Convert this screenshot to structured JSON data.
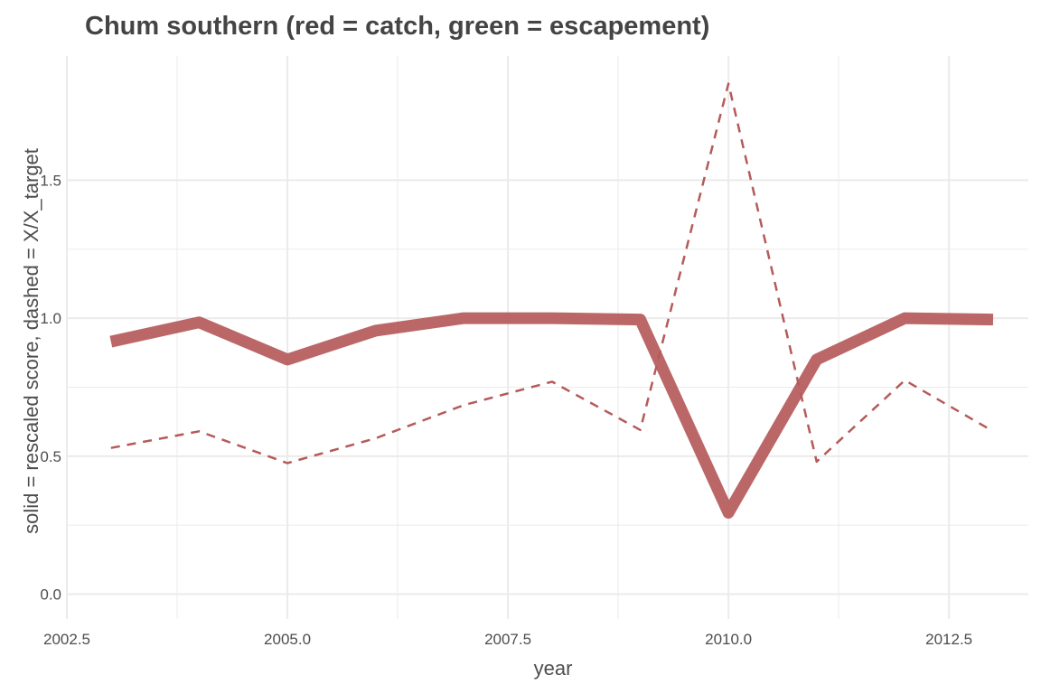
{
  "chart_data": {
    "type": "line",
    "title": "Chum southern (red = catch, green = escapement)",
    "xlabel": "year",
    "ylabel": "solid = rescaled score, dashed = X/X_target",
    "xlim": [
      2002.5,
      2013.4
    ],
    "ylim": [
      -0.09,
      1.95
    ],
    "x_ticks": [
      2002.5,
      2005.0,
      2007.5,
      2010.0,
      2012.5
    ],
    "x_tick_labels": [
      "2002.5",
      "2005.0",
      "2007.5",
      "2010.0",
      "2012.5"
    ],
    "y_ticks": [
      0.0,
      0.5,
      1.0,
      1.5
    ],
    "y_tick_labels": [
      "0.0",
      "0.5",
      "1.0",
      "1.5"
    ],
    "grid": true,
    "colors": {
      "catch": "#b55a5a",
      "grid": "#ebebeb",
      "text": "#4d4d4d"
    },
    "x": [
      2003,
      2004,
      2005,
      2006,
      2007,
      2008,
      2009,
      2010,
      2011,
      2012,
      2013
    ],
    "series": [
      {
        "style": "solid",
        "color": "#b55a5a",
        "values": [
          0.915,
          0.985,
          0.85,
          0.955,
          1.0,
          1.0,
          0.995,
          0.295,
          0.85,
          1.0,
          0.995
        ]
      },
      {
        "style": "dashed",
        "color": "#b55a5a",
        "values": [
          0.53,
          0.59,
          0.475,
          0.565,
          0.685,
          0.77,
          0.595,
          1.85,
          0.48,
          0.775,
          0.59
        ]
      }
    ]
  }
}
